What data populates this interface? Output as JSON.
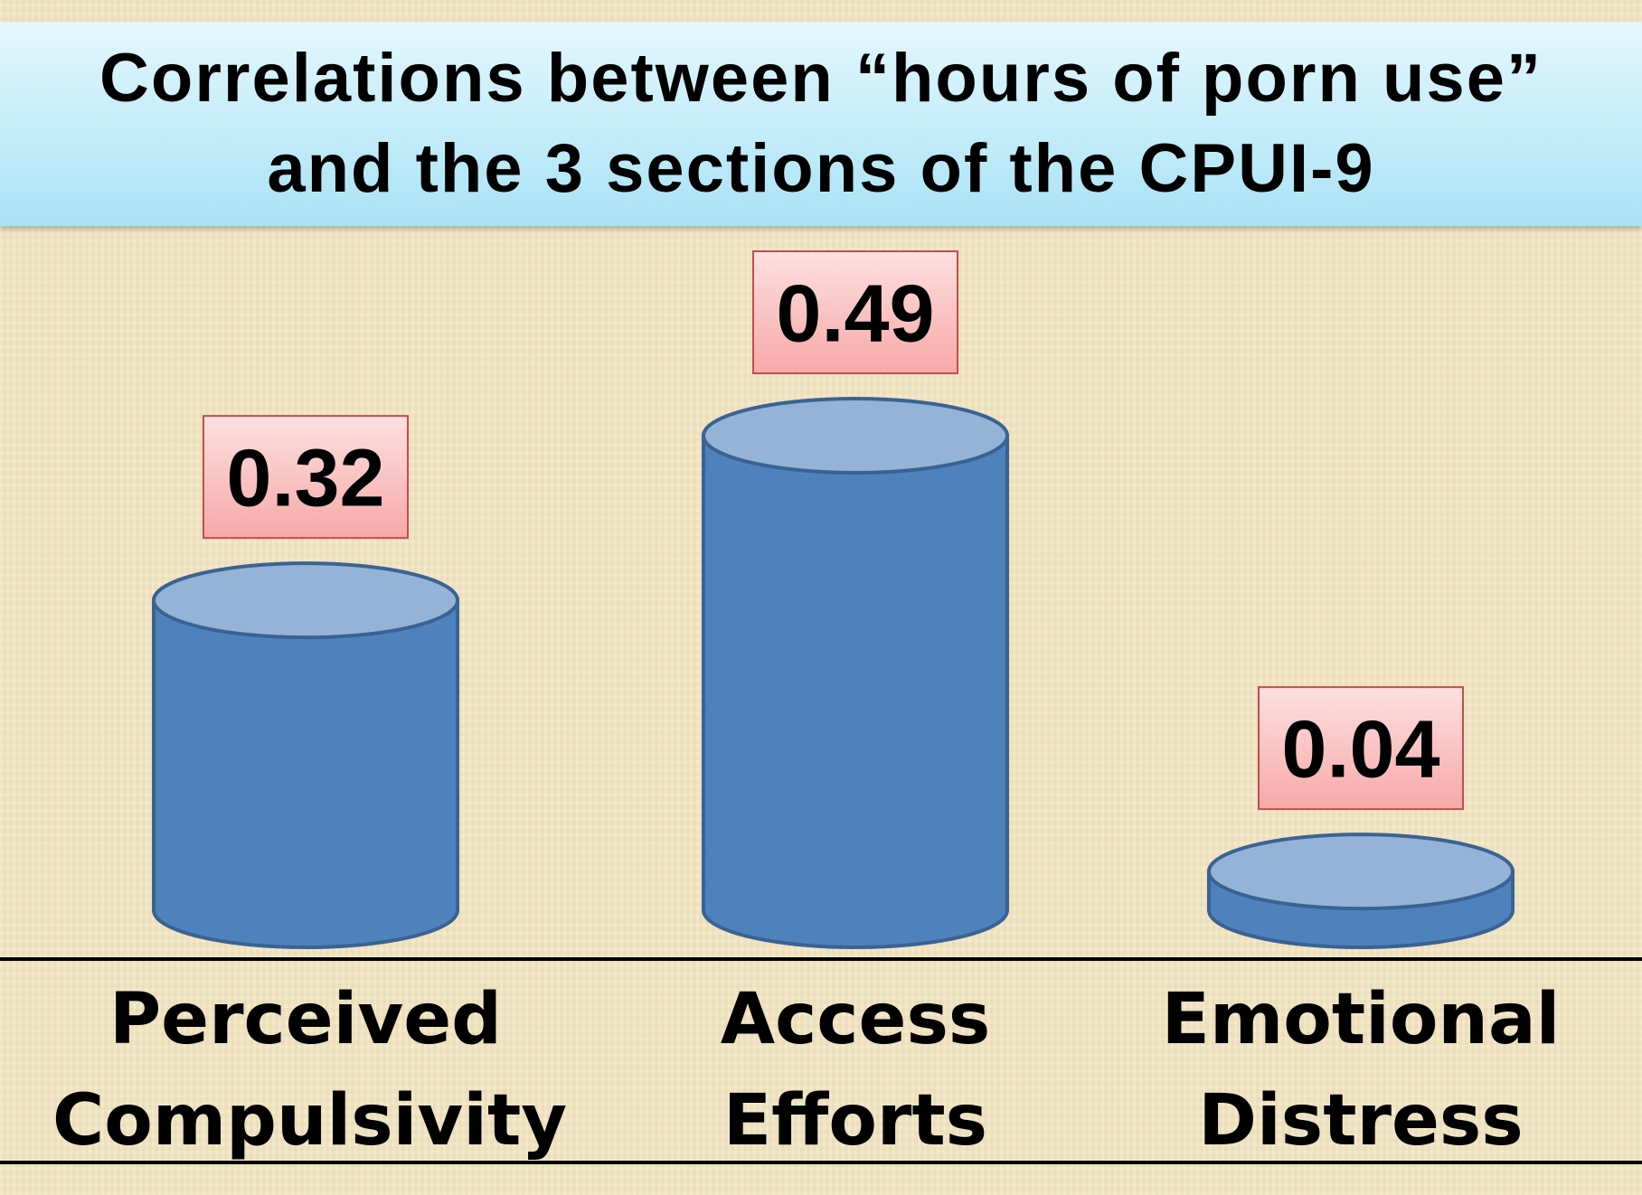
{
  "chart_data": {
    "type": "cylinder-bar",
    "title": "Correlations between “hours of porn use” and the 3 sections of the CPUI-9",
    "categories": [
      "Perceived Compulsivity",
      "Access Efforts",
      "Emotional Distress"
    ],
    "values": [
      0.32,
      0.49,
      0.04
    ],
    "color": "#4f81bd"
  }
}
